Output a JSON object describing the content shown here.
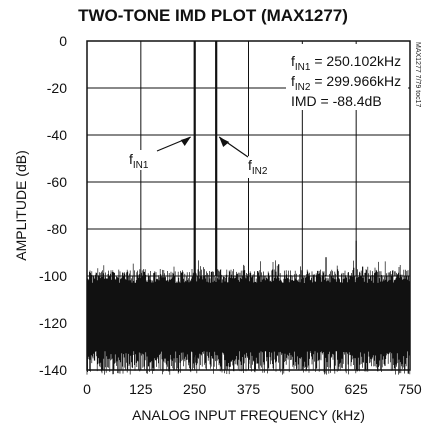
{
  "chart_data": {
    "type": "line",
    "title": "TWO-TONE IMD PLOT (MAX1277)",
    "xlabel": "ANALOG INPUT FREQUENCY (kHz)",
    "ylabel": "AMPLITUDE (dB)",
    "xlim": [
      0,
      750
    ],
    "ylim": [
      -140,
      0
    ],
    "xticks": [
      "0",
      "125",
      "250",
      "375",
      "500",
      "625",
      "750"
    ],
    "yticks": [
      "0",
      "-20",
      "-40",
      "-60",
      "-80",
      "-100",
      "-120",
      "-140"
    ],
    "grid": true,
    "tones": [
      {
        "x": 250.102,
        "y": 0
      },
      {
        "x": 299.966,
        "y": 0
      }
    ],
    "noise_floor_top": -100,
    "noise_floor_bottom": -130,
    "spurs": [
      {
        "x": 445,
        "y": -95
      },
      {
        "x": 555,
        "y": -92
      },
      {
        "x": 625,
        "y": -85
      },
      {
        "x": 640,
        "y": -96
      },
      {
        "x": 715,
        "y": -98
      }
    ],
    "annotations": {
      "fin1_label": "f",
      "fin1_sub": "IN1",
      "fin2_label": "f",
      "fin2_sub": "IN2",
      "fin1_value": "= 250.102kHz",
      "fin2_value": "= 299.966kHz",
      "imd": "IMD = -88.4dB"
    },
    "side_note": "MAX1277 7/79 toc17"
  }
}
